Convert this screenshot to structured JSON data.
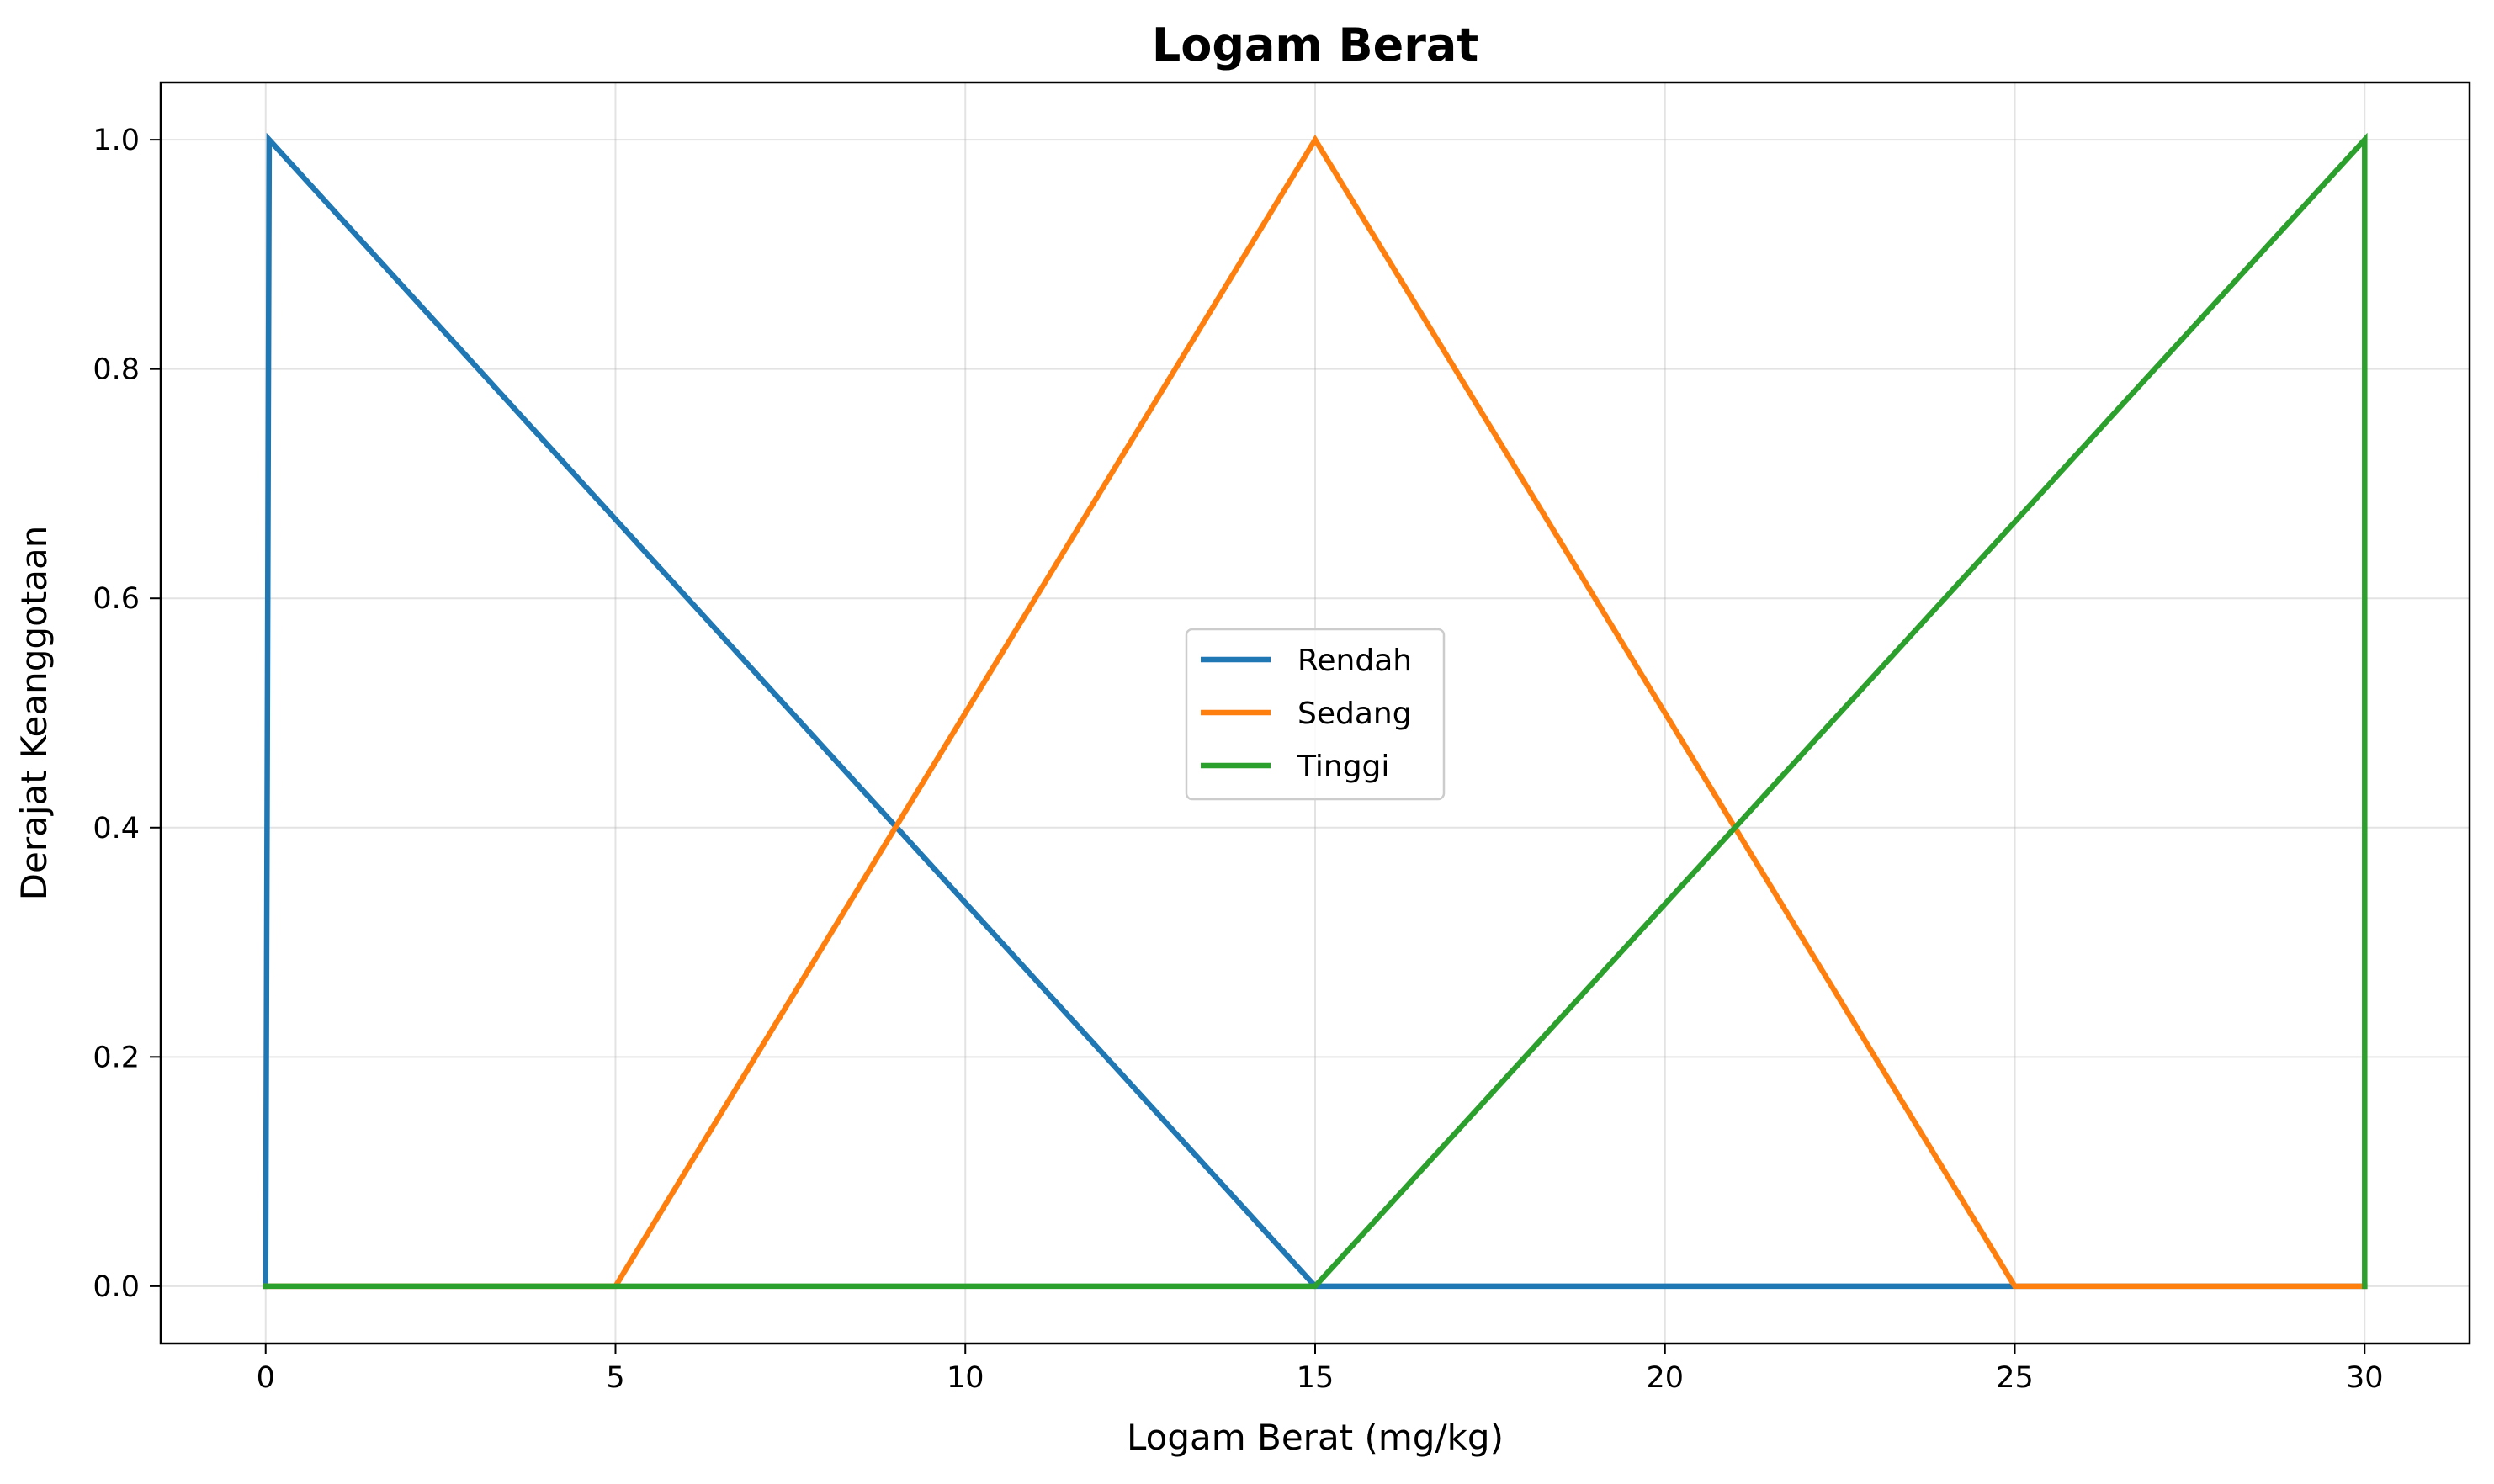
{
  "chart_data": {
    "type": "line",
    "title": "Logam Berat",
    "xlabel": "Logam Berat (mg/kg)",
    "ylabel": "Derajat Keanggotaan",
    "xlim": [
      -1.5,
      31.5
    ],
    "ylim": [
      -0.05,
      1.05
    ],
    "x_ticks": [
      0,
      5,
      10,
      15,
      20,
      25,
      30
    ],
    "y_ticks": [
      0.0,
      0.2,
      0.4,
      0.6,
      0.8,
      1.0
    ],
    "x_tick_labels": [
      "0",
      "5",
      "10",
      "15",
      "20",
      "25",
      "30"
    ],
    "y_tick_labels": [
      "0.0",
      "0.2",
      "0.4",
      "0.6",
      "0.8",
      "1.0"
    ],
    "grid": true,
    "legend_position": "center",
    "series": [
      {
        "name": "Rendah",
        "color": "#1f77b4",
        "x": [
          0,
          0.05,
          15,
          30
        ],
        "y": [
          0,
          1,
          0,
          0
        ]
      },
      {
        "name": "Sedang",
        "color": "#ff7f0e",
        "x": [
          0,
          5,
          15,
          25,
          30
        ],
        "y": [
          0,
          0,
          1,
          0,
          0
        ]
      },
      {
        "name": "Tinggi",
        "color": "#2ca02c",
        "x": [
          0,
          15,
          30,
          30
        ],
        "y": [
          0,
          0,
          1,
          0
        ]
      }
    ]
  }
}
